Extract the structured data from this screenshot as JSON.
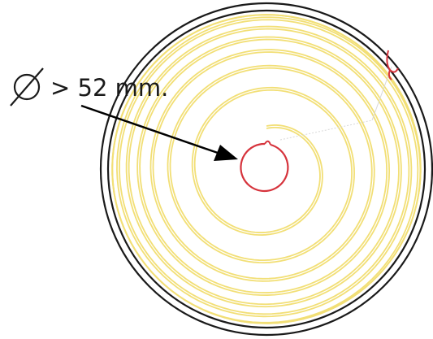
{
  "annotation": {
    "symbol": "diameter-symbol",
    "text": "> 52 mm."
  },
  "colors": {
    "background": "#ffffff",
    "outer_ring": "#1a1a1a",
    "spiral": "#f2df76",
    "core": "#d6333c",
    "arrow": "#000000",
    "text": "#1a1a1a",
    "guide_line": "#d8d8d8"
  }
}
